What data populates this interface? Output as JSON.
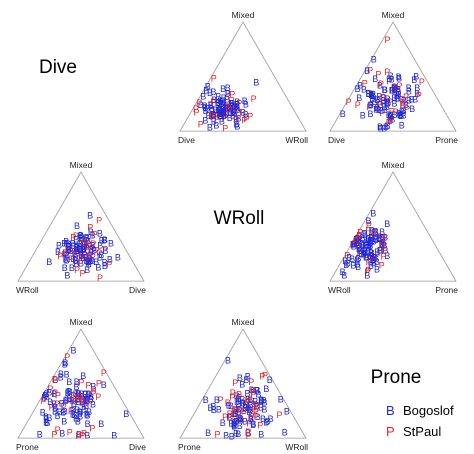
{
  "chart_data": {
    "type": "scatter",
    "kind": "ternary-pairs",
    "diagonal_titles": [
      "Dive",
      "WRoll",
      "Prone"
    ],
    "colors": {
      "Bogoslof": "#1f2ad6",
      "StPaul": "#e3262b",
      "frame": "#9a9a9a"
    },
    "series": [
      {
        "name": "Bogoslof",
        "symbol": "B"
      },
      {
        "name": "StPaul",
        "symbol": "P"
      }
    ],
    "panels": [
      {
        "id": "dive-wroll",
        "row": 0,
        "col": 1,
        "left": "Dive",
        "top": "Mixed",
        "right": "WRoll",
        "seed": 11,
        "cloud": {
          "a": [
            0.55,
            0.14
          ],
          "b": [
            0.2,
            0.09
          ],
          "c": [
            0.25,
            0.12
          ]
        }
      },
      {
        "id": "dive-prone",
        "row": 0,
        "col": 2,
        "left": "Dive",
        "top": "Mixed",
        "right": "Prone",
        "seed": 23,
        "cloud": {
          "a": [
            0.4,
            0.18
          ],
          "b": [
            0.3,
            0.15
          ],
          "c": [
            0.3,
            0.16
          ]
        }
      },
      {
        "id": "wroll-dive",
        "row": 1,
        "col": 0,
        "left": "WRoll",
        "top": "Mixed",
        "right": "Dive",
        "seed": 37,
        "cloud": {
          "a": [
            0.33,
            0.14
          ],
          "b": [
            0.27,
            0.11
          ],
          "c": [
            0.4,
            0.14
          ]
        }
      },
      {
        "id": "wroll-prone",
        "row": 1,
        "col": 2,
        "left": "WRoll",
        "top": "Mixed",
        "right": "Prone",
        "seed": 41,
        "cloud": {
          "a": [
            0.55,
            0.15
          ],
          "b": [
            0.3,
            0.14
          ],
          "c": [
            0.15,
            0.12
          ]
        }
      },
      {
        "id": "prone-dive",
        "row": 2,
        "col": 0,
        "left": "Prone",
        "top": "Mixed",
        "right": "Dive",
        "seed": 53,
        "cloud": {
          "a": [
            0.4,
            0.18
          ],
          "b": [
            0.32,
            0.17
          ],
          "c": [
            0.28,
            0.18
          ]
        }
      },
      {
        "id": "prone-wroll",
        "row": 2,
        "col": 1,
        "left": "Prone",
        "top": "Mixed",
        "right": "WRoll",
        "seed": 67,
        "cloud": {
          "a": [
            0.35,
            0.17
          ],
          "b": [
            0.25,
            0.15
          ],
          "c": [
            0.4,
            0.17
          ]
        }
      }
    ],
    "legend": {
      "entries": [
        "Bogoslof",
        "StPaul"
      ]
    }
  }
}
